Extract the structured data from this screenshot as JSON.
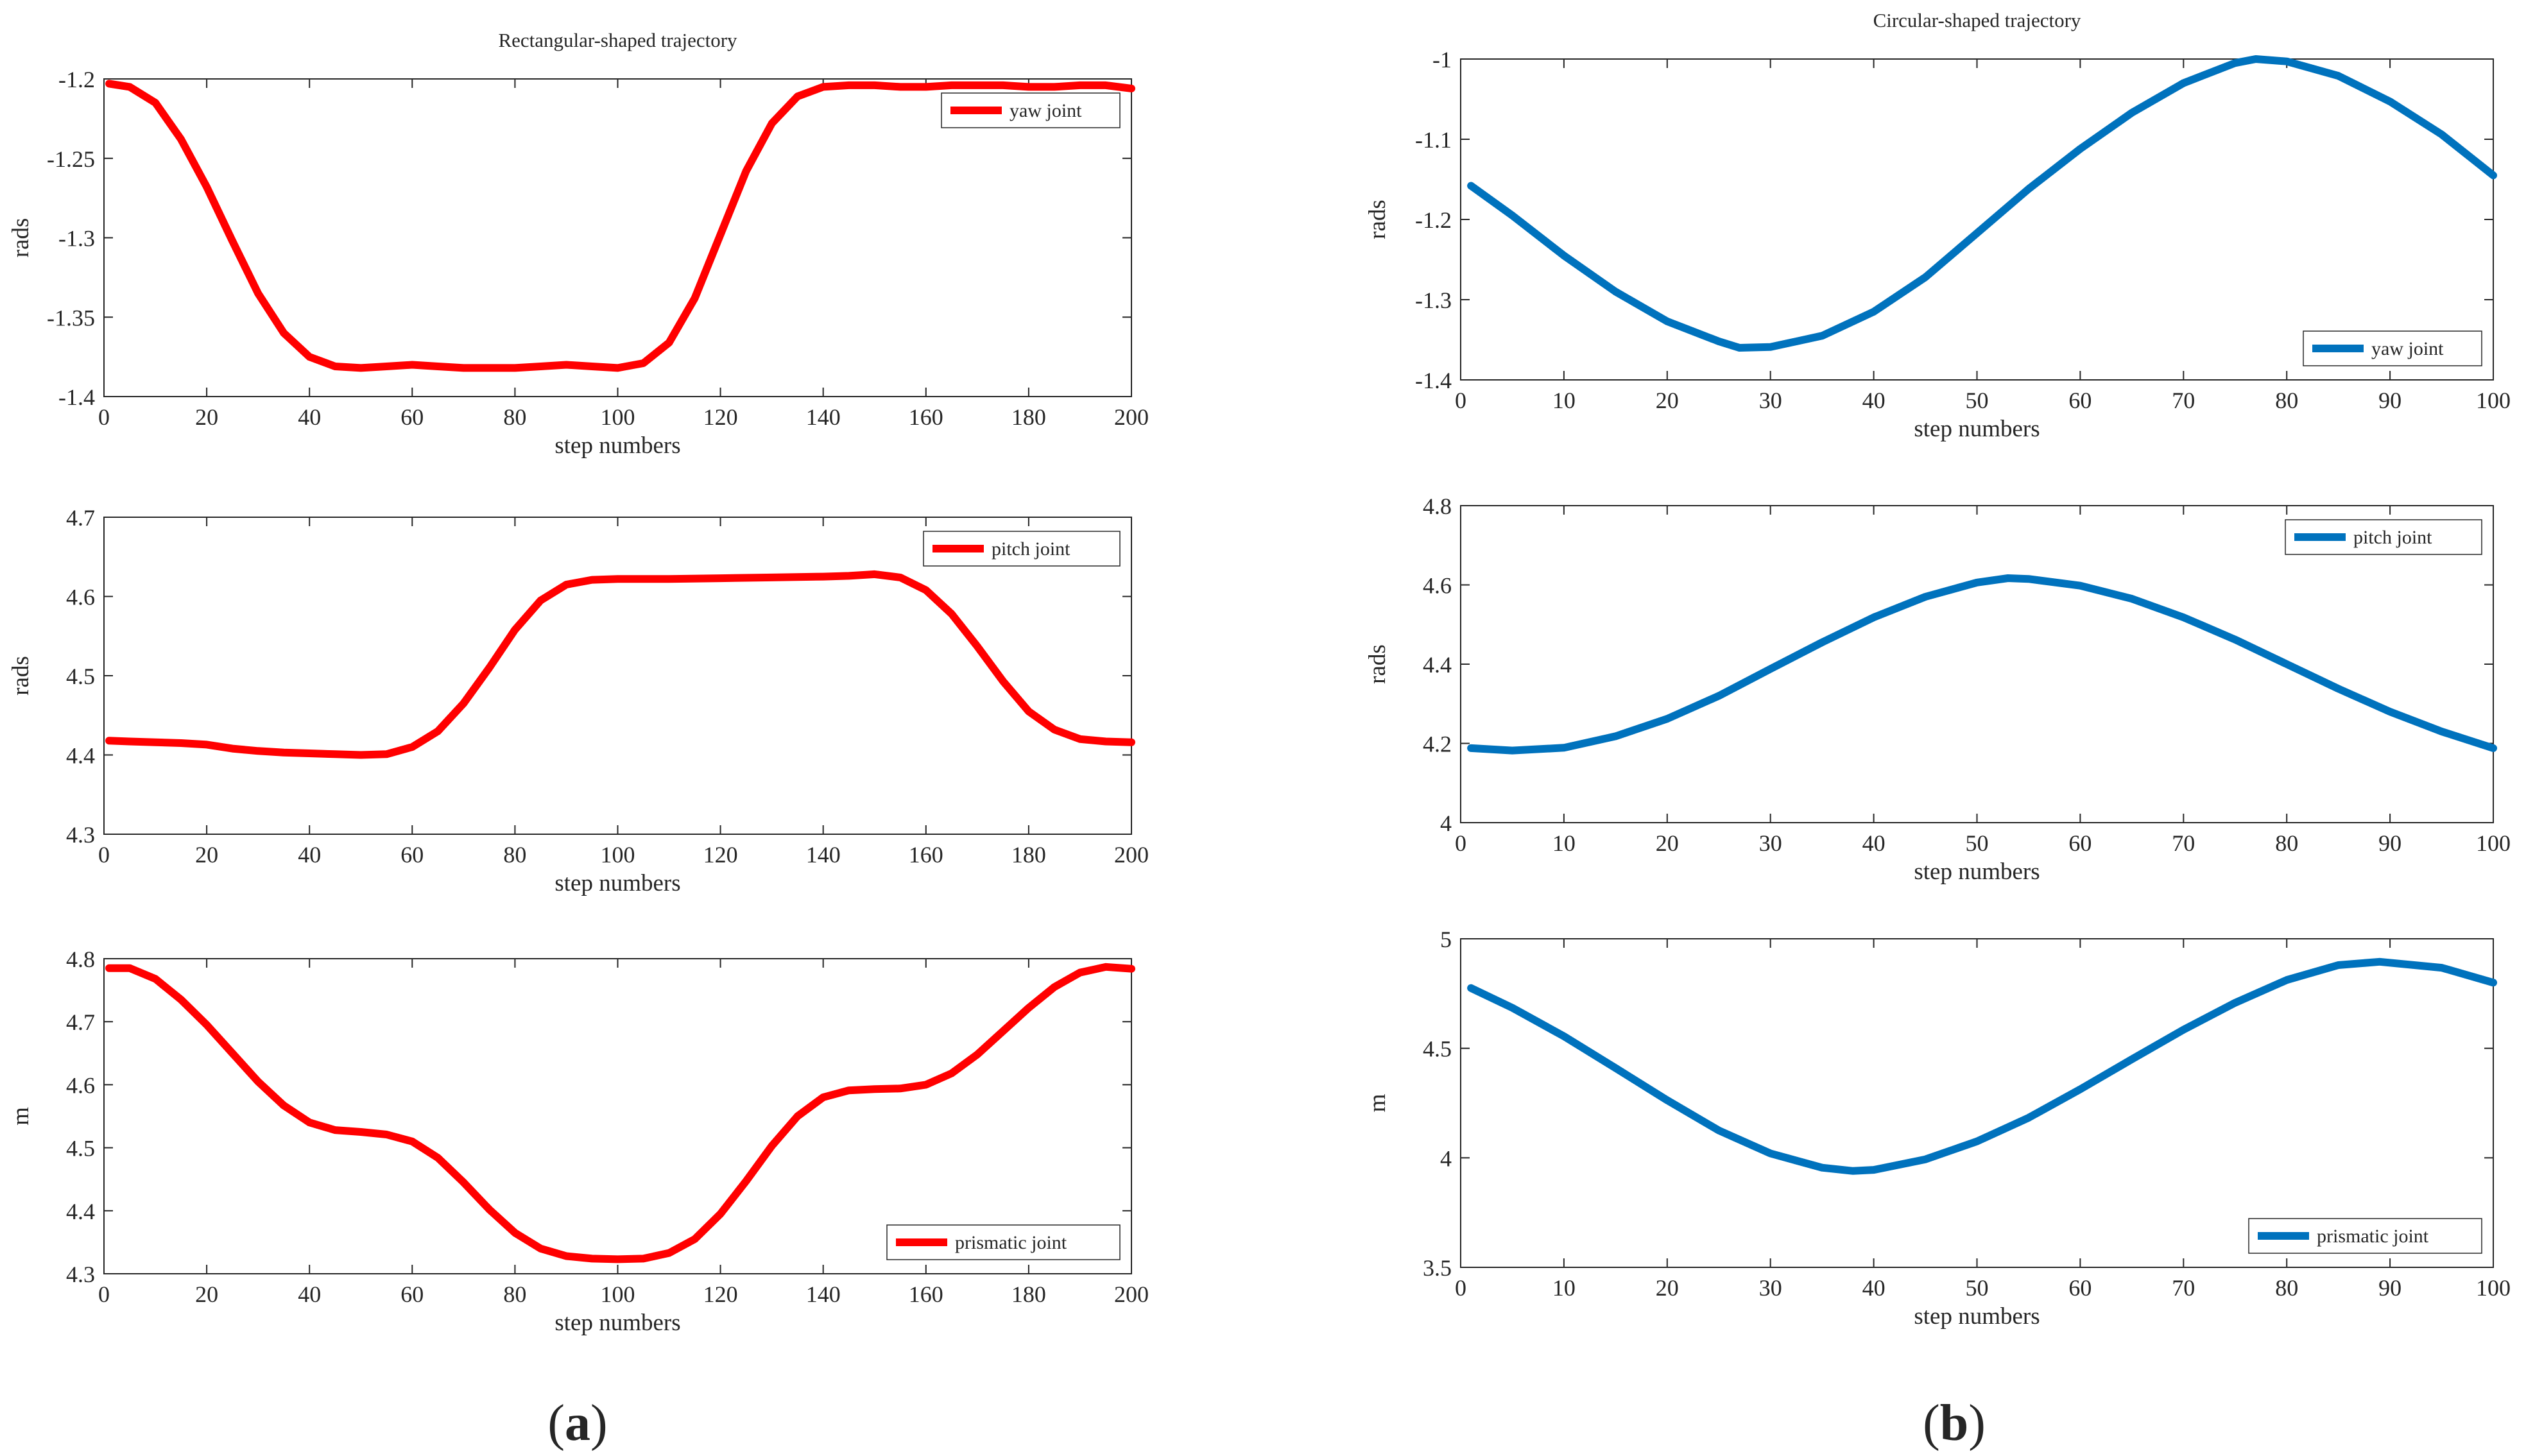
{
  "figure": {
    "panel_labels": [
      {
        "open": "(",
        "letter": "a",
        "close": ")"
      },
      {
        "open": "(",
        "letter": "b",
        "close": ")"
      }
    ]
  },
  "chart_data": [
    {
      "type": "line",
      "id": "a1",
      "title": "Rectangular-shaped trajectory",
      "xlabel": "step numbers",
      "ylabel": "rads",
      "xlim": [
        0,
        200
      ],
      "ylim": [
        -1.4,
        -1.2
      ],
      "xticks": [
        0,
        20,
        40,
        60,
        80,
        100,
        120,
        140,
        160,
        180,
        200
      ],
      "yticks": [
        -1.4,
        -1.35,
        -1.3,
        -1.25,
        -1.2
      ],
      "ytick_labels": [
        "-1.4",
        "-1.35",
        "-1.3",
        "-1.25",
        "-1.2"
      ],
      "legend": "top-right",
      "series": [
        {
          "name": "yaw joint",
          "color": "#ff0000",
          "x": [
            1,
            5,
            10,
            15,
            20,
            25,
            30,
            35,
            40,
            45,
            50,
            55,
            60,
            65,
            70,
            75,
            80,
            85,
            90,
            95,
            100,
            105,
            110,
            115,
            120,
            125,
            130,
            135,
            140,
            145,
            150,
            155,
            160,
            165,
            170,
            175,
            180,
            185,
            190,
            195,
            200
          ],
          "y": [
            -1.203,
            -1.205,
            -1.215,
            -1.238,
            -1.268,
            -1.302,
            -1.335,
            -1.36,
            -1.375,
            -1.381,
            -1.382,
            -1.381,
            -1.38,
            -1.381,
            -1.382,
            -1.382,
            -1.382,
            -1.381,
            -1.38,
            -1.381,
            -1.382,
            -1.379,
            -1.366,
            -1.338,
            -1.298,
            -1.258,
            -1.228,
            -1.211,
            -1.205,
            -1.204,
            -1.204,
            -1.205,
            -1.205,
            -1.204,
            -1.204,
            -1.204,
            -1.205,
            -1.205,
            -1.204,
            -1.204,
            -1.206
          ]
        }
      ]
    },
    {
      "type": "line",
      "id": "a2",
      "title": "",
      "xlabel": "step numbers",
      "ylabel": "rads",
      "xlim": [
        0,
        200
      ],
      "ylim": [
        4.3,
        4.7
      ],
      "xticks": [
        0,
        20,
        40,
        60,
        80,
        100,
        120,
        140,
        160,
        180,
        200
      ],
      "yticks": [
        4.3,
        4.4,
        4.5,
        4.6,
        4.7
      ],
      "ytick_labels": [
        "4.3",
        "4.4",
        "4.5",
        "4.6",
        "4.7"
      ],
      "legend": "top-right",
      "series": [
        {
          "name": "pitch joint",
          "color": "#ff0000",
          "x": [
            1,
            5,
            10,
            15,
            20,
            25,
            30,
            35,
            40,
            45,
            50,
            55,
            60,
            65,
            70,
            75,
            80,
            85,
            90,
            95,
            100,
            110,
            120,
            130,
            140,
            145,
            150,
            155,
            160,
            165,
            170,
            175,
            180,
            185,
            190,
            195,
            200
          ],
          "y": [
            4.418,
            4.417,
            4.416,
            4.415,
            4.413,
            4.408,
            4.405,
            4.403,
            4.402,
            4.401,
            4.4,
            4.401,
            4.41,
            4.43,
            4.465,
            4.51,
            4.558,
            4.595,
            4.615,
            4.621,
            4.622,
            4.622,
            4.623,
            4.624,
            4.625,
            4.626,
            4.628,
            4.624,
            4.608,
            4.578,
            4.537,
            4.493,
            4.455,
            4.432,
            4.42,
            4.417,
            4.416
          ]
        }
      ]
    },
    {
      "type": "line",
      "id": "a3",
      "title": "",
      "xlabel": "step numbers",
      "ylabel": "m",
      "xlim": [
        0,
        200
      ],
      "ylim": [
        4.3,
        4.8
      ],
      "xticks": [
        0,
        20,
        40,
        60,
        80,
        100,
        120,
        140,
        160,
        180,
        200
      ],
      "yticks": [
        4.3,
        4.4,
        4.5,
        4.6,
        4.7,
        4.8
      ],
      "ytick_labels": [
        "4.3",
        "4.4",
        "4.5",
        "4.6",
        "4.7",
        "4.8"
      ],
      "legend": "bottom-right",
      "series": [
        {
          "name": "prismatic joint",
          "color": "#ff0000",
          "x": [
            1,
            5,
            10,
            15,
            20,
            25,
            30,
            35,
            40,
            45,
            50,
            55,
            60,
            65,
            70,
            75,
            80,
            85,
            90,
            95,
            100,
            105,
            110,
            115,
            120,
            125,
            130,
            135,
            140,
            145,
            150,
            155,
            160,
            165,
            170,
            175,
            180,
            185,
            190,
            195,
            200
          ],
          "y": [
            4.785,
            4.785,
            4.768,
            4.735,
            4.695,
            4.65,
            4.605,
            4.567,
            4.54,
            4.528,
            4.525,
            4.521,
            4.51,
            4.484,
            4.445,
            4.402,
            4.365,
            4.34,
            4.328,
            4.324,
            4.323,
            4.324,
            4.333,
            4.355,
            4.395,
            4.447,
            4.503,
            4.55,
            4.58,
            4.591,
            4.593,
            4.594,
            4.6,
            4.618,
            4.648,
            4.685,
            4.722,
            4.755,
            4.778,
            4.787,
            4.784
          ]
        }
      ]
    },
    {
      "type": "line",
      "id": "b1",
      "title": "Circular-shaped trajectory",
      "xlabel": "step numbers",
      "ylabel": "rads",
      "xlim": [
        0,
        100
      ],
      "ylim": [
        -1.4,
        -1.0
      ],
      "xticks": [
        0,
        10,
        20,
        30,
        40,
        50,
        60,
        70,
        80,
        90,
        100
      ],
      "yticks": [
        -1.4,
        -1.3,
        -1.2,
        -1.1,
        -1.0
      ],
      "ytick_labels": [
        "-1.4",
        "-1.3",
        "-1.2",
        "-1.1",
        "-1"
      ],
      "legend": "bottom-right",
      "series": [
        {
          "name": "yaw joint",
          "color": "#0072bd",
          "x": [
            1,
            5,
            10,
            15,
            20,
            25,
            27,
            30,
            35,
            40,
            45,
            50,
            55,
            60,
            65,
            70,
            75,
            77,
            80,
            85,
            90,
            95,
            100
          ],
          "y": [
            -1.158,
            -1.195,
            -1.245,
            -1.29,
            -1.327,
            -1.352,
            -1.36,
            -1.359,
            -1.345,
            -1.315,
            -1.272,
            -1.217,
            -1.162,
            -1.112,
            -1.067,
            -1.03,
            -1.005,
            -1.0,
            -1.003,
            -1.021,
            -1.053,
            -1.094,
            -1.145
          ]
        }
      ]
    },
    {
      "type": "line",
      "id": "b2",
      "title": "",
      "xlabel": "step numbers",
      "ylabel": "rads",
      "xlim": [
        0,
        100
      ],
      "ylim": [
        4.0,
        4.8
      ],
      "xticks": [
        0,
        10,
        20,
        30,
        40,
        50,
        60,
        70,
        80,
        90,
        100
      ],
      "yticks": [
        4.0,
        4.2,
        4.4,
        4.6,
        4.8
      ],
      "ytick_labels": [
        "4",
        "4.2",
        "4.4",
        "4.6",
        "4.8"
      ],
      "legend": "top-right",
      "series": [
        {
          "name": "pitch joint",
          "color": "#0072bd",
          "x": [
            1,
            5,
            10,
            15,
            20,
            25,
            30,
            35,
            40,
            45,
            50,
            53,
            55,
            60,
            65,
            70,
            75,
            80,
            85,
            90,
            95,
            100
          ],
          "y": [
            4.188,
            4.182,
            4.189,
            4.218,
            4.262,
            4.32,
            4.388,
            4.455,
            4.518,
            4.57,
            4.606,
            4.617,
            4.615,
            4.598,
            4.565,
            4.518,
            4.462,
            4.4,
            4.338,
            4.28,
            4.23,
            4.188
          ]
        }
      ]
    },
    {
      "type": "line",
      "id": "b3",
      "title": "",
      "xlabel": "step numbers",
      "ylabel": "m",
      "xlim": [
        0,
        100
      ],
      "ylim": [
        3.5,
        5.0
      ],
      "xticks": [
        0,
        10,
        20,
        30,
        40,
        50,
        60,
        70,
        80,
        90,
        100
      ],
      "yticks": [
        3.5,
        4.0,
        4.5,
        5.0
      ],
      "ytick_labels": [
        "3.5",
        "4",
        "4.5",
        "5"
      ],
      "legend": "bottom-right",
      "series": [
        {
          "name": "prismatic joint",
          "color": "#0072bd",
          "x": [
            1,
            5,
            10,
            15,
            20,
            25,
            30,
            35,
            38,
            40,
            45,
            50,
            55,
            60,
            65,
            70,
            75,
            80,
            85,
            89,
            95,
            100
          ],
          "y": [
            4.775,
            4.685,
            4.555,
            4.41,
            4.263,
            4.125,
            4.02,
            3.955,
            3.94,
            3.945,
            3.993,
            4.075,
            4.183,
            4.313,
            4.45,
            4.585,
            4.708,
            4.812,
            4.88,
            4.895,
            4.868,
            4.8
          ]
        }
      ]
    }
  ]
}
